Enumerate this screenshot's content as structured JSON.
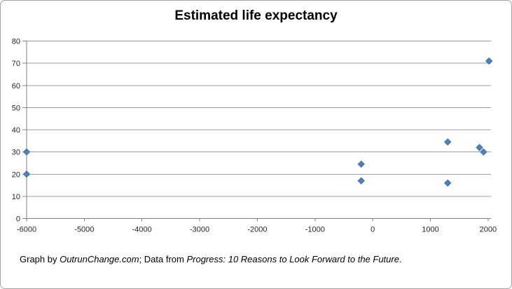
{
  "chart": {
    "title": "Estimated life expectancy",
    "caption": {
      "prefix": "Graph by ",
      "source": "OutrunChange.com",
      "middle": "; Data from ",
      "book": "Progress: 10 Reasons to Look Forward to the Future",
      "suffix": "."
    },
    "colors": {
      "marker_fill": "#4F81BD",
      "marker_stroke": "#3A6791",
      "gridline": "#9C9C9C",
      "axis": "#808080",
      "tick_text": "#262626",
      "frame_border": "#A3A3A3"
    }
  },
  "chart_data": {
    "type": "scatter",
    "title": "Estimated life expectancy",
    "xlabel": "",
    "ylabel": "",
    "series_name": "Estimated life expectancy",
    "legend": "none",
    "grid": "horizontal",
    "marker": "diamond",
    "marker_color": "#4F81BD",
    "xlim": [
      -6000,
      2050
    ],
    "ylim": [
      0,
      80
    ],
    "x_ticks": [
      -6000,
      -5000,
      -4000,
      -3000,
      -2000,
      -1000,
      0,
      1000,
      2000
    ],
    "y_ticks": [
      0,
      10,
      20,
      30,
      40,
      50,
      60,
      70,
      80
    ],
    "points": [
      {
        "x": -6000,
        "y": 30
      },
      {
        "x": -6000,
        "y": 20
      },
      {
        "x": -200,
        "y": 24.5
      },
      {
        "x": -200,
        "y": 17
      },
      {
        "x": 1300,
        "y": 34.5
      },
      {
        "x": 1300,
        "y": 16
      },
      {
        "x": 1850,
        "y": 32
      },
      {
        "x": 1920,
        "y": 30
      },
      {
        "x": 2016,
        "y": 71
      }
    ]
  }
}
